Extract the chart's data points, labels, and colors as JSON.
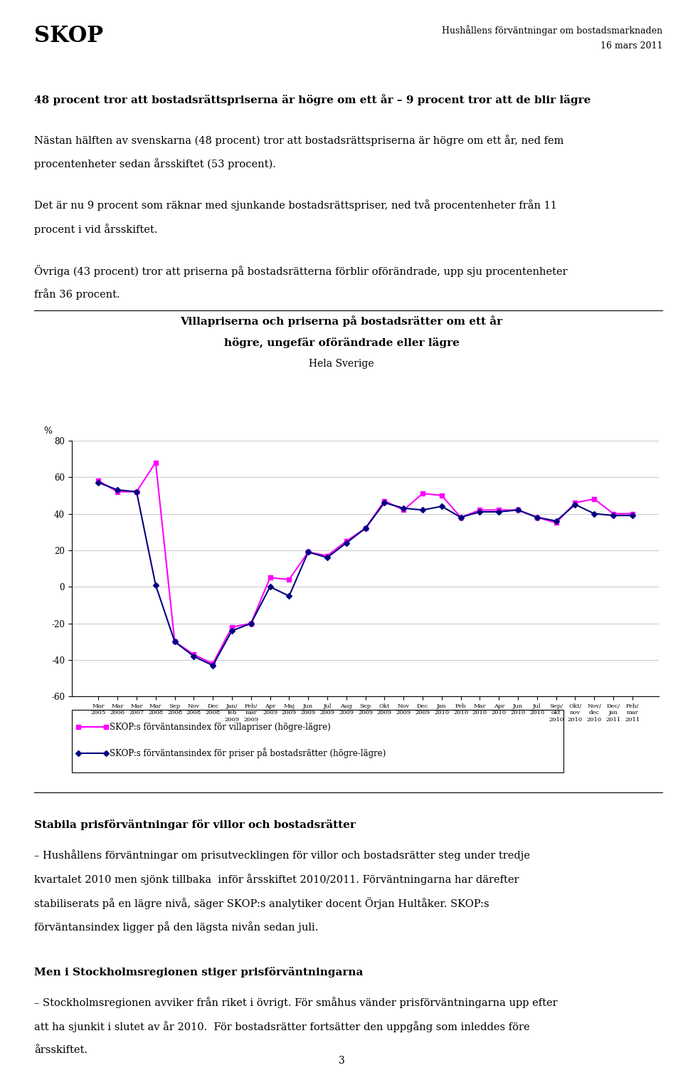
{
  "title_line1": "Villapriserna och priserna på bostadsrätter om ett år",
  "title_line2": "högre, ungefär oförändrade eller lägre",
  "title_line3": "Hela Sverige",
  "ylabel": "%",
  "ylim": [
    -60,
    80
  ],
  "yticks": [
    -60,
    -40,
    -20,
    0,
    20,
    40,
    60,
    80
  ],
  "villa_data": [
    58,
    52,
    52,
    68,
    -30,
    -37,
    -42,
    -22,
    -20,
    5,
    4,
    19,
    17,
    25,
    32,
    47,
    42,
    51,
    50,
    38,
    42,
    42,
    42,
    38,
    35,
    46,
    48,
    40,
    40
  ],
  "bostadsratt_data": [
    57,
    53,
    52,
    1,
    -30,
    -38,
    -43,
    -24,
    -20,
    0,
    -5,
    19,
    16,
    24,
    32,
    46,
    43,
    42,
    44,
    38,
    41,
    41,
    42,
    38,
    36,
    45,
    40,
    39,
    39
  ],
  "villa_color": "#FF00FF",
  "bostadsratt_color": "#000080",
  "background_color": "#ffffff",
  "grid_color": "#cccccc",
  "legend_villa": "SKOP:s förväntansindex för villapriser (högre-lägre)",
  "legend_bostadsratt": "SKOP:s förväntansindex för priser på bostadsrätter (högre-lägre)",
  "header_title": "SKOP",
  "header_right_line1": "Hushållens förväntningar om bostadsmarknaden",
  "header_right_line2": "16 mars 2011",
  "text_block1_bold": "48 procent tror att bostadsrättspriserna är högre om ett år – 9 procent tror att de blir lägre",
  "text_block1_normal_l1": "Nästan hälften av svenskarna (48 procent) tror att bostadsrättspriserna är högre om ett år, ned fem",
  "text_block1_normal_l2": "procentenheter sedan årsskiftet (53 procent).",
  "text_block2_l1": "Det är nu 9 procent som räknar med sjunkande bostadsrättspriser, ned två procentenheter från 11",
  "text_block2_l2": "procent i vid årsskiftet.",
  "text_block3_l1": "Övriga (43 procent) tror att priserna på bostadsrätterna förblir oförändrade, upp sju procentenheter",
  "text_block3_l2": "från 36 procent.",
  "text_block4_bold": "Stabila prisförväntningar för villor och bostadsrätter",
  "text_block4_l1": "– Hushållens förväntningar om prisutvecklingen för villor och bostadsrätter steg under tredje",
  "text_block4_l2": "kvartalet 2010 men sjönk tillbaka  inför årsskiftet 2010/2011. Förväntningarna har därefter",
  "text_block4_l3": "stabiliserats på en lägre nivå, säger SKOP:s analytiker docent Örjan Hultåker. SKOP:s",
  "text_block4_l4": "förväntansindex ligger på den lägsta nivån sedan juli.",
  "text_block5_bold": "Men i Stockholmsregionen stiger prisförväntningarna",
  "text_block5_l1": "– Stockholmsregionen avviker från riket i övrigt. För småhus vänder prisförväntningarna upp efter",
  "text_block5_l2": "att ha sjunkit i slutet av år 2010.  För bostadsrätter fortsätter den uppgång som inleddes före",
  "text_block5_l3": "årsskiftet.",
  "page_number": "3"
}
